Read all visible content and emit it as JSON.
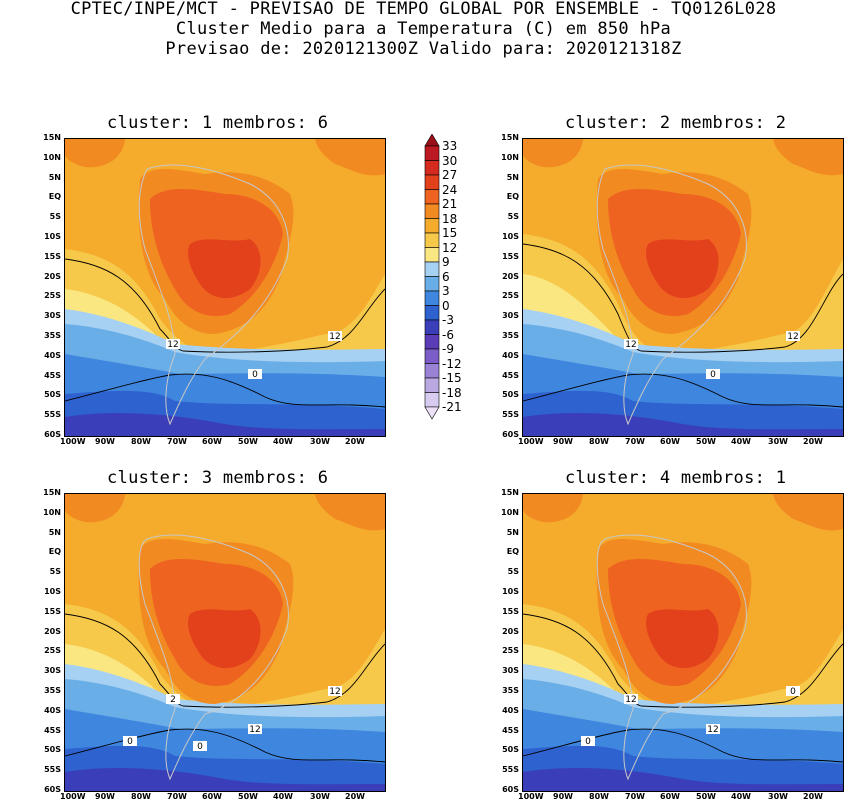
{
  "header": {
    "line1": "CPTEC/INPE/MCT - PREVISAO DE TEMPO GLOBAL POR ENSEMBLE - TQ0126L028",
    "line2": "Cluster Medio para a Temperatura (C) em 850 hPa",
    "line3": "Previsao de: 2020121300Z   Valido para: 2020121318Z"
  },
  "panels": [
    {
      "title": "cluster: 1  membros: 6",
      "contour_labels": [
        "12",
        "12",
        "0"
      ]
    },
    {
      "title": "cluster: 2  membros: 2",
      "contour_labels": [
        "12",
        "12",
        "0"
      ]
    },
    {
      "title": "cluster: 3  membros: 6",
      "contour_labels": [
        "2",
        "12",
        "12",
        "0",
        "0"
      ]
    },
    {
      "title": "cluster: 4  membros: 1",
      "contour_labels": [
        "12",
        "0",
        "12",
        "0"
      ]
    }
  ],
  "lat_labels": [
    "15N",
    "10N",
    "5N",
    "EQ",
    "5S",
    "10S",
    "15S",
    "20S",
    "25S",
    "30S",
    "35S",
    "40S",
    "45S",
    "50S",
    "55S",
    "60S"
  ],
  "lon_labels": [
    "100W",
    "90W",
    "80W",
    "70W",
    "60W",
    "50W",
    "40W",
    "30W",
    "20W"
  ],
  "colorbar": {
    "labels": [
      "33",
      "30",
      "27",
      "24",
      "21",
      "18",
      "15",
      "12",
      "9",
      "6",
      "3",
      "0",
      "-3",
      "-6",
      "-9",
      "-12",
      "-15",
      "-18",
      "-21"
    ],
    "colors": [
      "#9a0f18",
      "#bb1a22",
      "#d52a1e",
      "#e3401c",
      "#ee6320",
      "#f28a22",
      "#f5ab2c",
      "#f7c94a",
      "#fbe782",
      "#a7d1f2",
      "#6aaee8",
      "#3f86de",
      "#2e62cf",
      "#3a3fb9",
      "#5a3cb6",
      "#7b5cc8",
      "#9a82d6",
      "#baa8e3",
      "#d8cbf0",
      "#ecdff8"
    ]
  }
}
